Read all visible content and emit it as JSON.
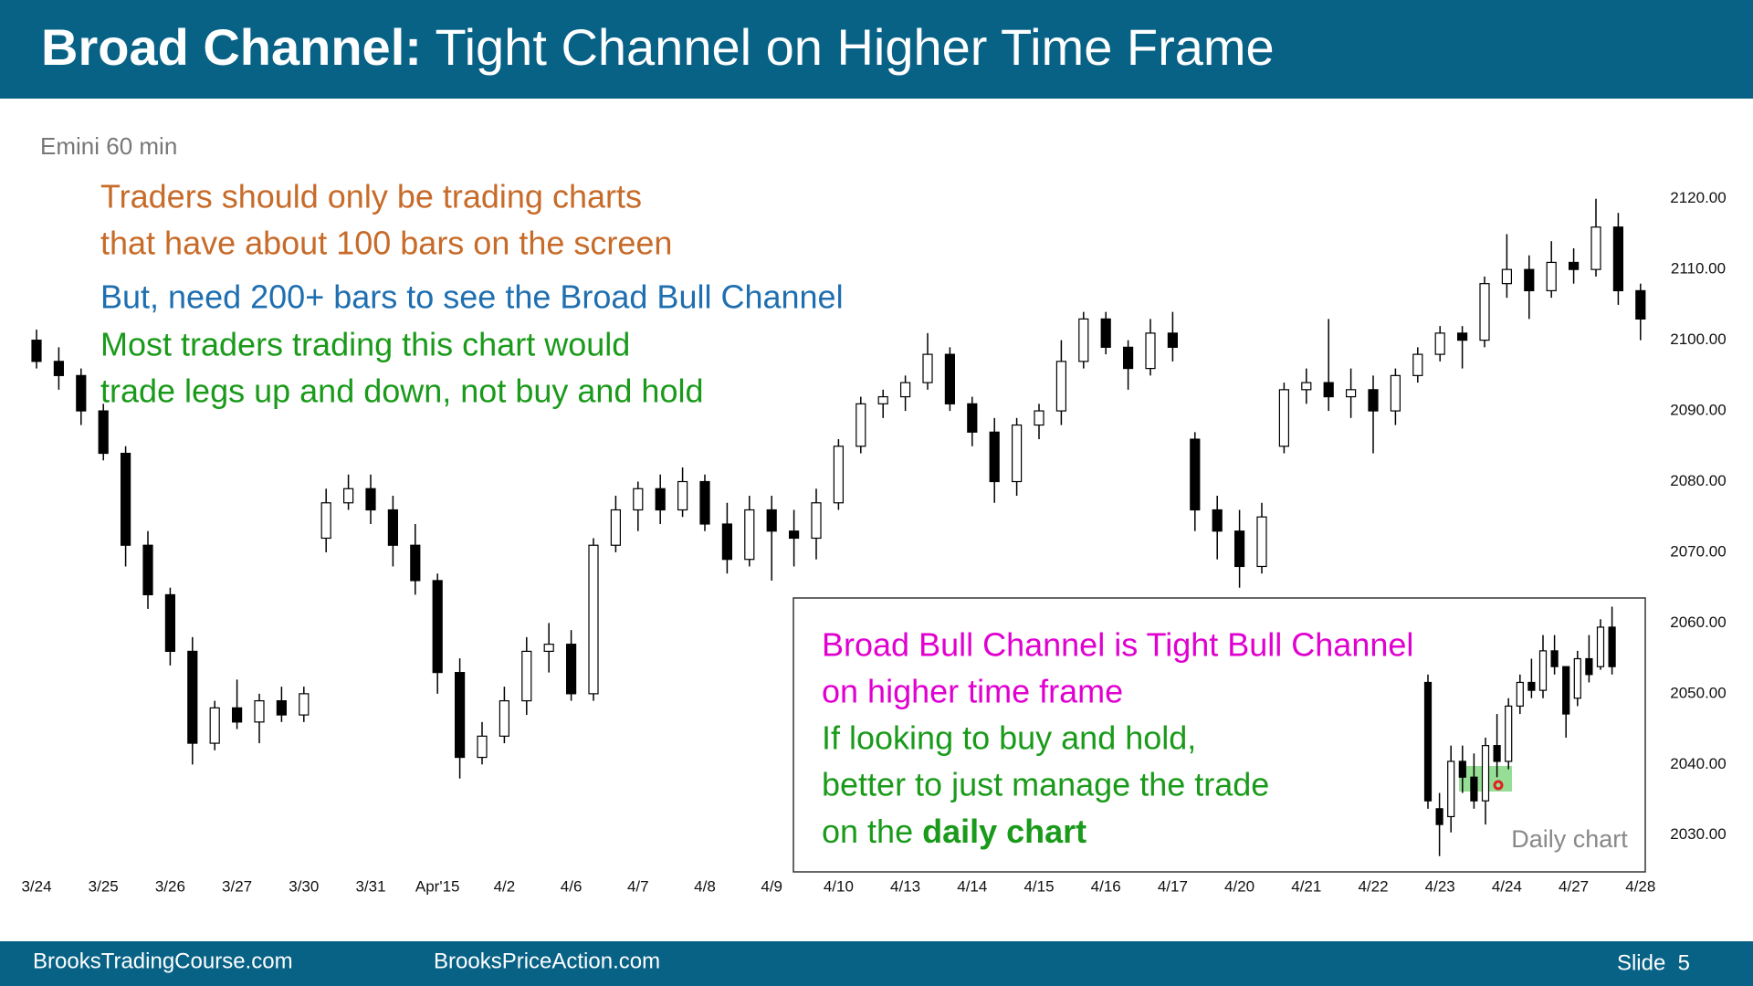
{
  "header": {
    "title_bold": "Broad Channel:",
    "title_rest": "Tight Channel on Higher Time Frame"
  },
  "notes": [
    {
      "text": "Traders should only be trading charts",
      "color": "#c76b29"
    },
    {
      "text": "that have about 100 bars on the screen",
      "color": "#c76b29"
    },
    {
      "text": "But, need 200+ bars to see the Broad Bull Channel",
      "color": "#1f6fb0"
    },
    {
      "text": "Most traders trading this chart would",
      "color": "#1a9a1a"
    },
    {
      "text": "trade legs up and down, not buy and hold",
      "color": "#1a9a1a"
    }
  ],
  "inset_notes": [
    {
      "text": "Broad Bull Channel is Tight Bull Channel",
      "color": "#e000d0"
    },
    {
      "text": "on higher time frame",
      "color": "#e000d0"
    },
    {
      "text": "If looking to buy and hold,",
      "color": "#1a9a1a"
    },
    {
      "text": "better to just manage the trade",
      "color": "#1a9a1a"
    }
  ],
  "inset_last": {
    "text": "on the ",
    "bold": "daily chart",
    "color": "#1a9a1a"
  },
  "footer": {
    "left": "BrooksTradingCourse.com",
    "center": "BrooksPriceAction.com",
    "slide": "Slide  5"
  },
  "chart_data": [
    {
      "type": "candlestick",
      "subtitle": "Emini 60 min",
      "up_color": "#ffffff",
      "down_color": "#000000",
      "ylim": [
        2027,
        2125
      ],
      "yticks": [
        {
          "value": 2030,
          "label": "2030.00"
        },
        {
          "value": 2040,
          "label": "2040.00"
        },
        {
          "value": 2050,
          "label": "2050.00"
        },
        {
          "value": 2060,
          "label": "2060.00"
        },
        {
          "value": 2070,
          "label": "2070.00"
        },
        {
          "value": 2080,
          "label": "2080.00"
        },
        {
          "value": 2090,
          "label": "2090.00"
        },
        {
          "value": 2100,
          "label": "2100.00"
        },
        {
          "value": 2110,
          "label": "2110.00"
        },
        {
          "value": 2120,
          "label": "2120.00"
        }
      ],
      "categories": [
        "3/24",
        null,
        null,
        "3/25",
        null,
        null,
        "3/26",
        null,
        null,
        "3/27",
        null,
        null,
        "3/30",
        null,
        null,
        "3/31",
        null,
        null,
        "Apr'15",
        null,
        null,
        "4/2",
        null,
        null,
        "4/6",
        null,
        null,
        "4/7",
        null,
        null,
        "4/8",
        null,
        null,
        "4/9",
        null,
        null,
        "4/10",
        null,
        null,
        "4/13",
        null,
        null,
        "4/14",
        null,
        null,
        "4/15",
        null,
        null,
        "4/16",
        null,
        null,
        "4/17",
        null,
        null,
        "4/20",
        null,
        null,
        "4/21",
        null,
        null,
        "4/22",
        null,
        null,
        "4/23",
        null,
        null,
        "4/24",
        null,
        null,
        "4/27",
        null,
        null,
        "4/28"
      ],
      "ohlc": [
        [
          2100,
          2101.5,
          2096,
          2097
        ],
        [
          2097,
          2099,
          2093,
          2095
        ],
        [
          2095,
          2096,
          2088,
          2090
        ],
        [
          2090,
          2091,
          2083,
          2084
        ],
        [
          2084,
          2085,
          2068,
          2071
        ],
        [
          2071,
          2073,
          2062,
          2064
        ],
        [
          2064,
          2065,
          2054,
          2056
        ],
        [
          2056,
          2058,
          2040,
          2043
        ],
        [
          2043,
          2049,
          2042,
          2048
        ],
        [
          2048,
          2052,
          2045,
          2046
        ],
        [
          2046,
          2050,
          2043,
          2049
        ],
        [
          2049,
          2051,
          2046,
          2047
        ],
        [
          2047,
          2051,
          2046,
          2050
        ],
        [
          2072,
          2079,
          2070,
          2077
        ],
        [
          2077,
          2081,
          2076,
          2079
        ],
        [
          2079,
          2081,
          2074,
          2076
        ],
        [
          2076,
          2078,
          2068,
          2071
        ],
        [
          2071,
          2074,
          2064,
          2066
        ],
        [
          2066,
          2067,
          2050,
          2053
        ],
        [
          2053,
          2055,
          2038,
          2041
        ],
        [
          2041,
          2046,
          2040,
          2044
        ],
        [
          2044,
          2051,
          2043,
          2049
        ],
        [
          2049,
          2058,
          2047,
          2056
        ],
        [
          2056,
          2060,
          2053,
          2057
        ],
        [
          2057,
          2059,
          2049,
          2050
        ],
        [
          2050,
          2072,
          2049,
          2071
        ],
        [
          2071,
          2078,
          2070,
          2076
        ],
        [
          2076,
          2080,
          2073,
          2079
        ],
        [
          2079,
          2081,
          2074,
          2076
        ],
        [
          2076,
          2082,
          2075,
          2080
        ],
        [
          2080,
          2081,
          2073,
          2074
        ],
        [
          2074,
          2077,
          2067,
          2069
        ],
        [
          2069,
          2078,
          2068,
          2076
        ],
        [
          2076,
          2078,
          2066,
          2073
        ],
        [
          2073,
          2076,
          2068,
          2072
        ],
        [
          2072,
          2079,
          2069,
          2077
        ],
        [
          2077,
          2086,
          2076,
          2085
        ],
        [
          2085,
          2092,
          2084,
          2091
        ],
        [
          2091,
          2093,
          2089,
          2092
        ],
        [
          2092,
          2095,
          2090,
          2094
        ],
        [
          2094,
          2101,
          2093,
          2098
        ],
        [
          2098,
          2099,
          2090,
          2091
        ],
        [
          2091,
          2092,
          2085,
          2087
        ],
        [
          2087,
          2089,
          2077,
          2080
        ],
        [
          2080,
          2089,
          2078,
          2088
        ],
        [
          2088,
          2091,
          2086,
          2090
        ],
        [
          2090,
          2100,
          2088,
          2097
        ],
        [
          2097,
          2104,
          2096,
          2103
        ],
        [
          2103,
          2104,
          2098,
          2099
        ],
        [
          2099,
          2100,
          2093,
          2096
        ],
        [
          2096,
          2103,
          2095,
          2101
        ],
        [
          2101,
          2104,
          2097,
          2099
        ],
        [
          2086,
          2087,
          2073,
          2076
        ],
        [
          2076,
          2078,
          2069,
          2073
        ],
        [
          2073,
          2076,
          2065,
          2068
        ],
        [
          2068,
          2077,
          2067,
          2075
        ],
        [
          2085,
          2094,
          2084,
          2093
        ],
        [
          2093,
          2096,
          2091,
          2094
        ],
        [
          2094,
          2103,
          2090,
          2092
        ],
        [
          2092,
          2096,
          2089,
          2093
        ],
        [
          2093,
          2095,
          2084,
          2090
        ],
        [
          2090,
          2096,
          2088,
          2095
        ],
        [
          2095,
          2099,
          2094,
          2098
        ],
        [
          2098,
          2102,
          2097,
          2101
        ],
        [
          2101,
          2102,
          2096,
          2100
        ],
        [
          2100,
          2109,
          2099,
          2108
        ],
        [
          2108,
          2115,
          2106,
          2110
        ],
        [
          2110,
          2112,
          2103,
          2107
        ],
        [
          2107,
          2114,
          2106,
          2111
        ],
        [
          2111,
          2113,
          2108,
          2110
        ],
        [
          2110,
          2120,
          2109,
          2116
        ],
        [
          2116,
          2118,
          2105,
          2107
        ],
        [
          2107,
          2108,
          2100,
          2103
        ]
      ]
    },
    {
      "type": "candlestick",
      "title": "Daily chart",
      "up_color": "#ffffff",
      "down_color": "#000000",
      "ylim": [
        1960,
        2130
      ],
      "ohlc": [
        [
          2080,
          2085,
          2000,
          2005
        ],
        [
          2000,
          2010,
          1970,
          1990
        ],
        [
          1995,
          2040,
          1985,
          2030
        ],
        [
          2030,
          2040,
          2010,
          2020
        ],
        [
          2020,
          2035,
          2000,
          2005
        ],
        [
          2005,
          2045,
          1990,
          2040
        ],
        [
          2040,
          2060,
          2020,
          2030
        ],
        [
          2030,
          2070,
          2025,
          2065
        ],
        [
          2065,
          2085,
          2060,
          2080
        ],
        [
          2080,
          2095,
          2070,
          2075
        ],
        [
          2075,
          2110,
          2070,
          2100
        ],
        [
          2100,
          2110,
          2085,
          2090
        ],
        [
          2090,
          2090,
          2045,
          2060
        ],
        [
          2070,
          2100,
          2065,
          2095
        ],
        [
          2095,
          2110,
          2080,
          2085
        ],
        [
          2090,
          2120,
          2088,
          2115
        ],
        [
          2115,
          2128,
          2085,
          2090
        ]
      ]
    }
  ]
}
